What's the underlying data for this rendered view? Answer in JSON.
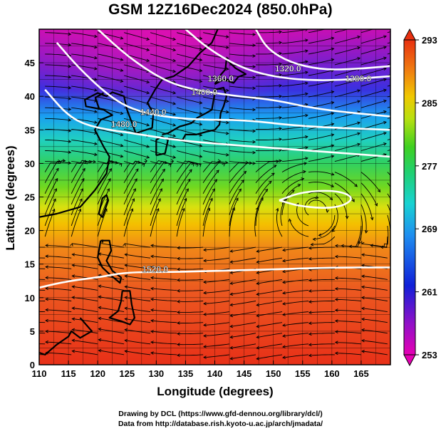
{
  "title": "GSM 12Z16Dec2024 (850.0hPa)",
  "x_axis": {
    "label": "Longitude (degrees)",
    "ticks": [
      "110",
      "115",
      "120",
      "125",
      "130",
      "135",
      "140",
      "145",
      "150",
      "155",
      "160",
      "165"
    ],
    "range": [
      110,
      170
    ]
  },
  "y_axis": {
    "label": "Latitude  (degrees)",
    "ticks": [
      "0",
      "5",
      "10",
      "15",
      "20",
      "25",
      "30",
      "35",
      "40",
      "45"
    ],
    "range": [
      0,
      50
    ]
  },
  "colorbar": {
    "ticks": [
      "253",
      "261",
      "269",
      "277",
      "285",
      "293"
    ],
    "min": 253,
    "max": 293,
    "colors": [
      "#e600b4",
      "#7a10c8",
      "#1020d8",
      "#1f8ff0",
      "#18d2d2",
      "#20d070",
      "#3fd020",
      "#b8e010",
      "#f0c800",
      "#f08010",
      "#e83010"
    ]
  },
  "contour_labels": [
    {
      "text": "1320.0",
      "lon": 152.5,
      "lat": 43.7
    },
    {
      "text": "1360.0",
      "lon": 141.0,
      "lat": 42.2
    },
    {
      "text": "1280.0",
      "lon": 164.5,
      "lat": 42.2
    },
    {
      "text": "1400.0",
      "lon": 138.2,
      "lat": 40.2
    },
    {
      "text": "1440.0",
      "lon": 129.5,
      "lat": 37.2
    },
    {
      "text": "1480.0",
      "lon": 124.5,
      "lat": 35.4
    },
    {
      "text": "1520.0",
      "lon": 129.8,
      "lat": 13.8
    }
  ],
  "credits": {
    "line1": "Drawing by DCL (https://www.gfd-dennou.org/library/dcl/)",
    "line2": "Data from http://database.rish.kyoto-u.ac.jp/arch/jmadata/"
  }
}
